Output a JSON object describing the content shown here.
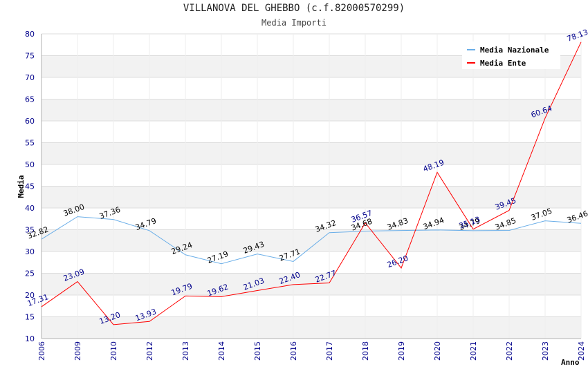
{
  "header": {
    "title": "VILLANOVA DEL GHEBBO (c.f.82000570299)",
    "subtitle": "Media Importi"
  },
  "chart_data": {
    "type": "line",
    "title": "VILLANOVA DEL GHEBBO (c.f.82000570299)",
    "subtitle": "Media Importi",
    "xlabel": "Anno",
    "ylabel": "Media",
    "categories": [
      "2006",
      "2009",
      "2010",
      "2012",
      "2013",
      "2014",
      "2015",
      "2016",
      "2017",
      "2018",
      "2019",
      "2020",
      "2021",
      "2022",
      "2023",
      "2024"
    ],
    "ylim": [
      10,
      80
    ],
    "yticks": [
      10,
      15,
      20,
      25,
      30,
      35,
      40,
      45,
      50,
      55,
      60,
      65,
      70,
      75,
      80
    ],
    "grid": true,
    "legend_position": "top-right",
    "series": [
      {
        "name": "Media Nazionale",
        "color": "#6aaee8",
        "label_color": "#000000",
        "values": [
          32.82,
          38.0,
          37.36,
          34.79,
          29.24,
          27.19,
          29.43,
          27.71,
          34.32,
          34.68,
          34.83,
          34.94,
          34.79,
          34.85,
          37.05,
          36.46
        ],
        "labels": [
          "32.82",
          "38.00",
          "37.36",
          "34.79",
          "29.24",
          "27.19",
          "29.43",
          "27.71",
          "34.32",
          "34.68",
          "34.83",
          "34.94",
          "34.79",
          "34.85",
          "37.05",
          "36.46"
        ]
      },
      {
        "name": "Media Ente",
        "color": "#ff0000",
        "label_color": "#00008b",
        "values": [
          17.31,
          23.09,
          13.2,
          13.93,
          19.79,
          19.62,
          21.03,
          22.4,
          22.77,
          36.57,
          26.2,
          48.19,
          35.13,
          39.45,
          60.64,
          78.13
        ],
        "labels": [
          "17.31",
          "23.09",
          "13.20",
          "13.93",
          "19.79",
          "19.62",
          "21.03",
          "22.40",
          "22.77",
          "36.57",
          "26.20",
          "48.19",
          "35.13",
          "39.45",
          "60.64",
          "78.13"
        ]
      }
    ]
  }
}
